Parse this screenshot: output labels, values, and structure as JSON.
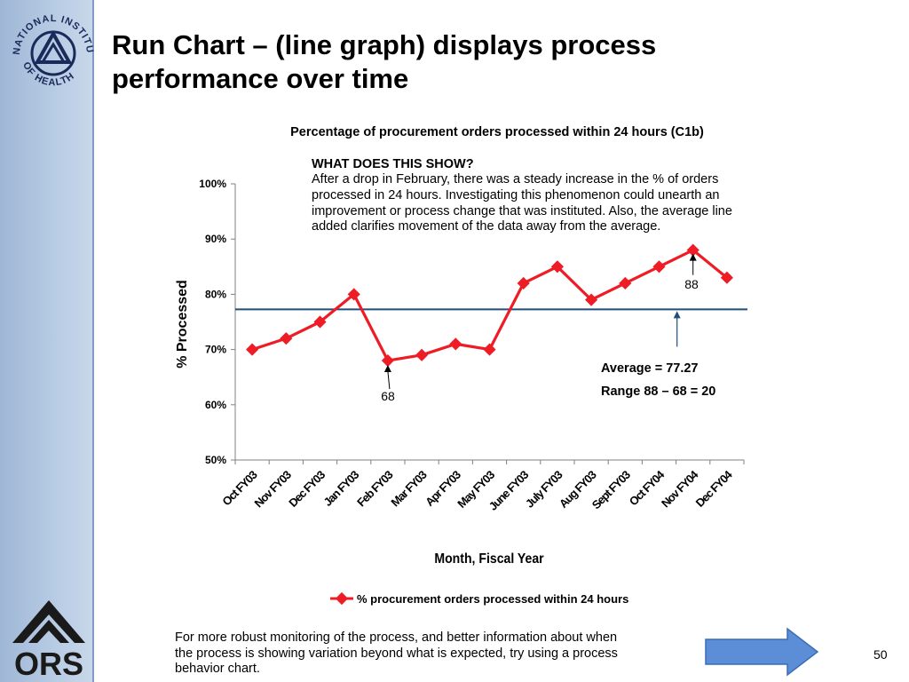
{
  "slide": {
    "title_line1": "Run Chart – (line graph) displays process",
    "title_line2": "performance over time",
    "nih_logo_text": "NATIONAL INSTITUTES OF HEALTH",
    "ors_logo_text": "ORS",
    "footer_line1": "For more robust monitoring of the process, and better information about when",
    "footer_line2": "the process is showing variation beyond what is expected, try using a  process",
    "footer_line3": "behavior chart.",
    "page_number": "50",
    "arrow_color": "#5b8ed6"
  },
  "chart_data": {
    "type": "line",
    "title": "Percentage of procurement orders processed within 24 hours (C1b)",
    "xlabel": "Month, Fiscal Year",
    "ylabel": "% Processed",
    "ylim": [
      50,
      100
    ],
    "yticks": [
      "50%",
      "60%",
      "70%",
      "80%",
      "90%",
      "100%"
    ],
    "categories": [
      "Oct FY03",
      "Nov FY03",
      "Dec FY03",
      "Jan FY03",
      "Feb FY03",
      "Mar FY03",
      "Apr FY03",
      "May FY03",
      "June FY03",
      "July FY03",
      "Aug FY03",
      "Sept FY03",
      "Oct FY04",
      "Nov FY04",
      "Dec FY04"
    ],
    "series": [
      {
        "name": "%  procurement orders processed within 24 hours",
        "values": [
          70,
          72,
          75,
          80,
          68,
          69,
          71,
          70,
          82,
          85,
          79,
          82,
          85,
          88,
          83
        ],
        "color": "#ee1c25"
      }
    ],
    "average": 77.27,
    "average_color": "#1f4e79",
    "grid": false,
    "legend_position": "bottom",
    "annotations": {
      "heading": "WHAT DOES THIS SHOW?",
      "lines": [
        "After a drop in February, there was a steady increase in the % of orders",
        "processed in 24 hours. Investigating this phenomenon could unearth an",
        "improvement or process change that was instituted. Also, the average line",
        "added clarifies movement of the data away from the average."
      ],
      "average_text": "Average = 77.27",
      "range_text": "Range  88 – 68 = 20",
      "max_label": "88",
      "min_label": "68"
    }
  }
}
